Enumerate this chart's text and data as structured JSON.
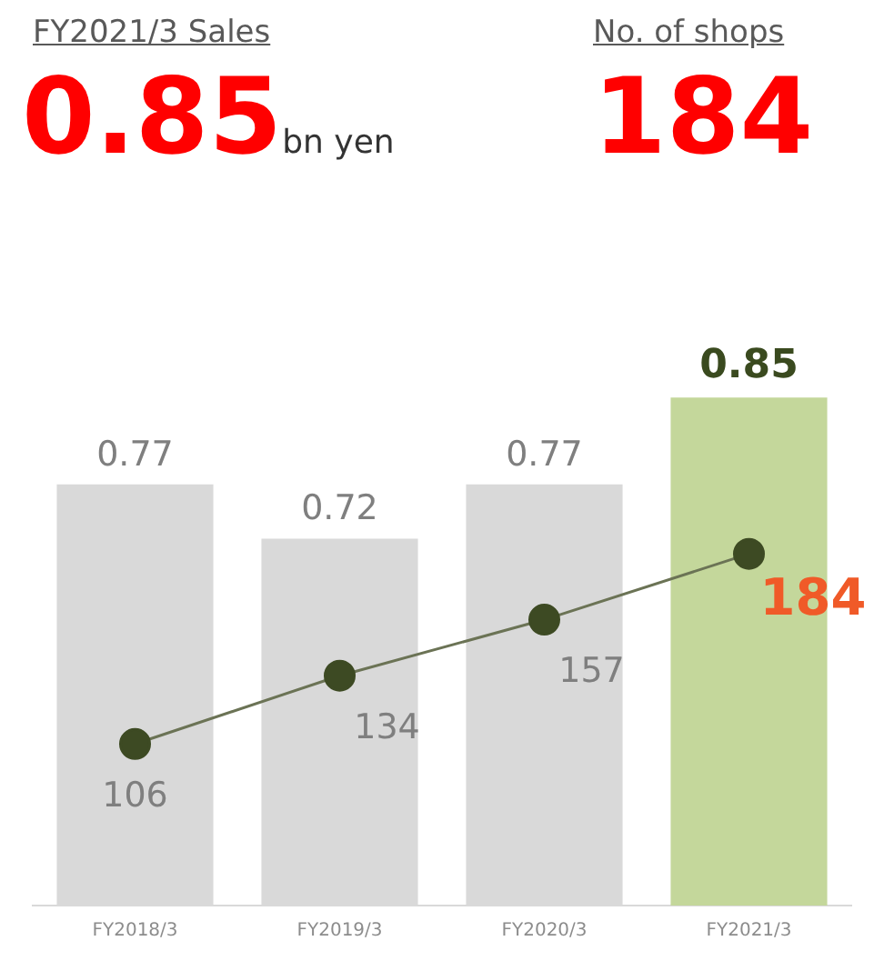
{
  "chart_data": {
    "type": "bar",
    "annotations": [
      "FY2021/3 Sales",
      "0.85",
      "bn yen",
      "No. of shops",
      "184"
    ],
    "categories": [
      "FY2018/3",
      "FY2019/3",
      "FY2020/3",
      "FY2021/3"
    ],
    "series": [
      {
        "colors": [
          "#d9d9d9",
          "#d9d9d9",
          "#d9d9d9",
          "#c4d79b"
        ],
        "values": [
          0.77,
          0.72,
          0.77,
          0.85
        ]
      },
      {
        "type": "line",
        "axis": "y2",
        "color": "#6b7355",
        "values": [
          106,
          134,
          157,
          184
        ]
      }
    ],
    "data_labels": true,
    "grid": false,
    "legend": false,
    "tick_labels": "x",
    "marker": "circle",
    "line_style": "solid"
  }
}
